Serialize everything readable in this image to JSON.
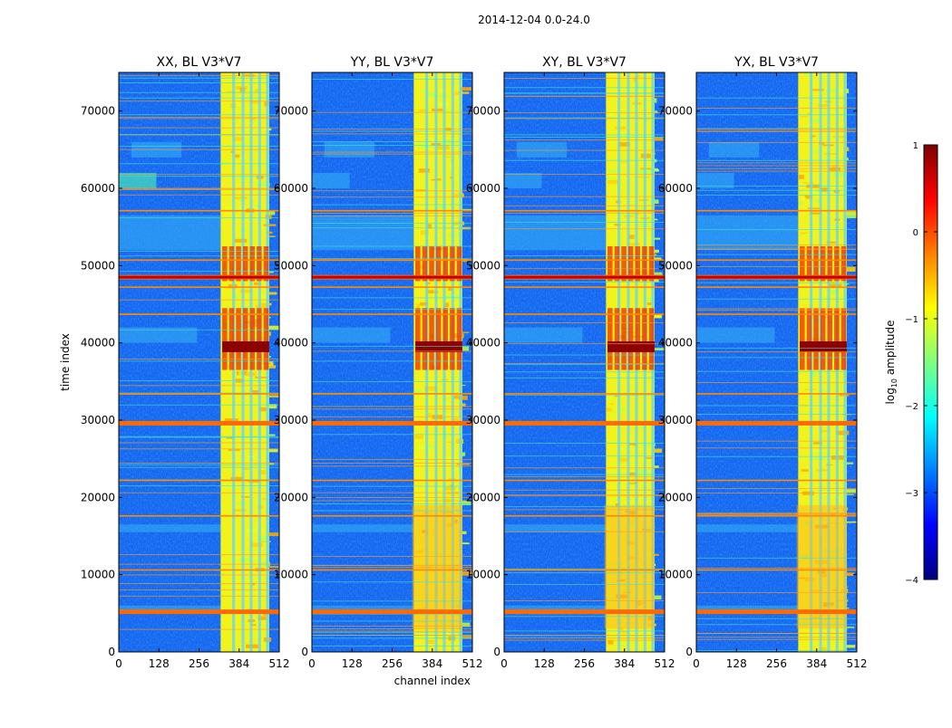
{
  "figure": {
    "suptitle": "2014-12-04 0.0-24.0"
  },
  "colorbar": {
    "label_prefix": "log",
    "label_sub": "10",
    "label_suffix": " amplitude",
    "range": [
      -4,
      1
    ],
    "ticks": [
      -4,
      -3,
      -2,
      -1,
      0,
      1
    ],
    "tick_labels": [
      "−4",
      "−3",
      "−2",
      "−1",
      "0",
      "1"
    ],
    "colormap": "jet",
    "colors": [
      "#00007f",
      "#0000ff",
      "#007fff",
      "#00ffff",
      "#7fff7f",
      "#ffff00",
      "#ff7f00",
      "#ff0000",
      "#7f0000"
    ]
  },
  "chart_data": [
    {
      "type": "heatmap",
      "title": "XX, BL V3*V7",
      "xlabel": "",
      "ylabel": "time index",
      "xlim": [
        0,
        512
      ],
      "ylim": [
        0,
        75000
      ],
      "xticks": [
        0,
        128,
        256,
        384,
        512
      ],
      "yticks": [
        0,
        10000,
        20000,
        30000,
        40000,
        50000,
        60000,
        70000
      ],
      "value_label": "log10 amplitude",
      "bright_channel_band": [
        325,
        480
      ],
      "strong_rfi_rows": [
        5200,
        29600,
        48500
      ],
      "intense_time_range": [
        37000,
        52000
      ]
    },
    {
      "type": "heatmap",
      "title": "YY, BL V3*V7",
      "xlabel": "channel index",
      "ylabel": "",
      "xlim": [
        0,
        512
      ],
      "ylim": [
        0,
        75000
      ],
      "xticks": [
        0,
        128,
        256,
        384,
        512
      ],
      "yticks": [
        0,
        10000,
        20000,
        30000,
        40000,
        50000,
        60000,
        70000
      ],
      "value_label": "log10 amplitude",
      "bright_channel_band": [
        325,
        480
      ],
      "strong_rfi_rows": [
        5200,
        29600,
        48500
      ],
      "intense_time_range": [
        37000,
        52000
      ]
    },
    {
      "type": "heatmap",
      "title": "XY, BL V3*V7",
      "xlabel": "",
      "ylabel": "",
      "xlim": [
        0,
        512
      ],
      "ylim": [
        0,
        75000
      ],
      "xticks": [
        0,
        128,
        256,
        384,
        512
      ],
      "yticks": [
        0,
        10000,
        20000,
        30000,
        40000,
        50000,
        60000,
        70000
      ],
      "value_label": "log10 amplitude",
      "bright_channel_band": [
        325,
        480
      ],
      "strong_rfi_rows": [
        5200,
        29600,
        48500
      ],
      "intense_time_range": [
        37000,
        52000
      ]
    },
    {
      "type": "heatmap",
      "title": "YX, BL V3*V7",
      "xlabel": "",
      "ylabel": "",
      "xlim": [
        0,
        512
      ],
      "ylim": [
        0,
        75000
      ],
      "xticks": [
        0,
        128,
        256,
        384,
        512
      ],
      "yticks": [
        0,
        10000,
        20000,
        30000,
        40000,
        50000,
        60000,
        70000
      ],
      "value_label": "log10 amplitude",
      "bright_channel_band": [
        325,
        480
      ],
      "strong_rfi_rows": [
        5200,
        29600,
        48500
      ],
      "intense_time_range": [
        37000,
        52000
      ]
    }
  ]
}
